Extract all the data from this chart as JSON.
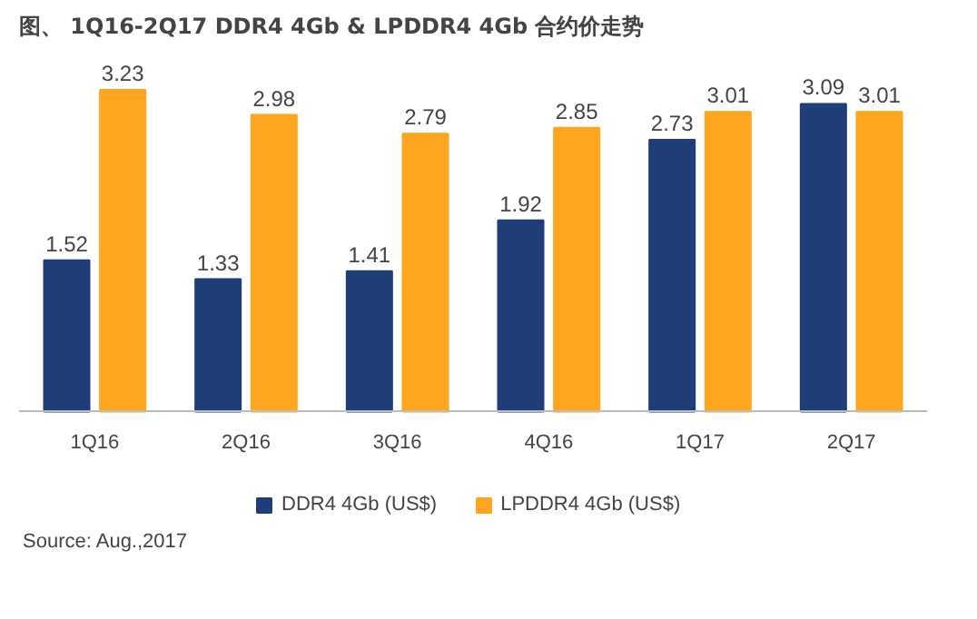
{
  "chart_data": {
    "type": "bar",
    "title": "图、 1Q16-2Q17 DDR4 4Gb & LPDDR4 4Gb 合约价走势",
    "categories": [
      "1Q16",
      "2Q16",
      "3Q16",
      "4Q16",
      "1Q17",
      "2Q17"
    ],
    "series": [
      {
        "name": "DDR4 4Gb (US$)",
        "color": "#1f3e78",
        "values": [
          1.52,
          1.33,
          1.41,
          1.92,
          2.73,
          3.09
        ]
      },
      {
        "name": "LPDDR4 4Gb (US$)",
        "color": "#ffa51f",
        "values": [
          3.23,
          2.98,
          2.79,
          2.85,
          3.01,
          3.01
        ]
      }
    ],
    "data_labels": true,
    "legend": "bottom",
    "grid": false,
    "annotations": [
      "Source: Aug.,2017"
    ]
  }
}
